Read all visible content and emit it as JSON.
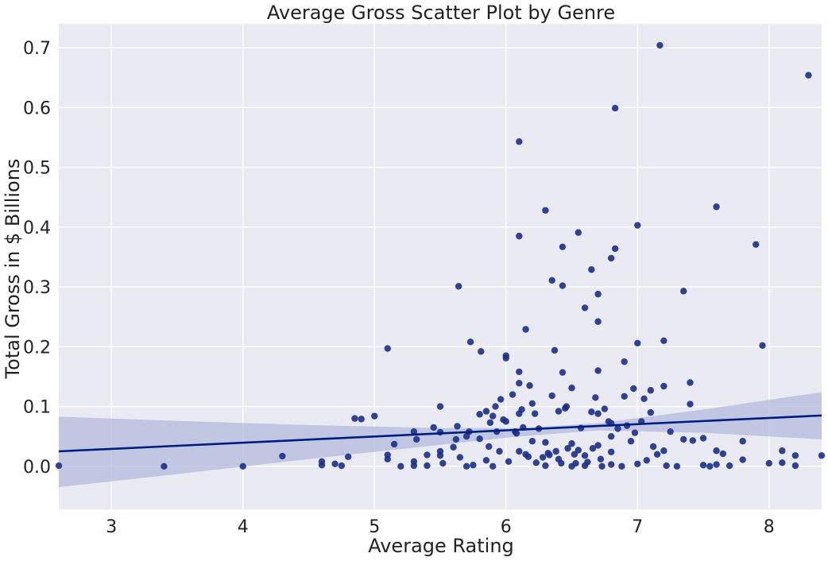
{
  "chart_data": {
    "type": "scatter",
    "title": "Average Gross Scatter Plot by Genre",
    "xlabel": "Average Rating",
    "ylabel": "Total Gross in $ Billions",
    "xlim": [
      2.6,
      8.4
    ],
    "ylim": [
      -0.072,
      0.74
    ],
    "x_ticks": [
      3,
      4,
      5,
      6,
      7,
      8
    ],
    "x_tick_labels": [
      "3",
      "4",
      "5",
      "6",
      "7",
      "8"
    ],
    "y_ticks": [
      0.0,
      0.1,
      0.2,
      0.3,
      0.4,
      0.5,
      0.6,
      0.7
    ],
    "y_tick_labels": [
      "0.0",
      "0.1",
      "0.2",
      "0.3",
      "0.4",
      "0.5",
      "0.6",
      "0.7"
    ],
    "grid": true,
    "legend": "none",
    "colors": {
      "background": "#EAEAF2",
      "grid": "#FFFFFF",
      "point": "#1B2F8A",
      "line": "#001C7F",
      "ci_band": "#B3BBDD"
    },
    "regression": {
      "x_range": [
        2.6,
        8.4
      ],
      "line_y": [
        0.025,
        0.085
      ],
      "ci_upper": [
        0.083,
        0.124
      ],
      "ci_lower": [
        -0.035,
        0.045
      ],
      "ci_x": [
        2.6,
        3.5,
        4.5,
        5.5,
        6.1,
        6.7,
        7.5,
        8.4
      ],
      "ci_upper_values": [
        0.083,
        0.076,
        0.069,
        0.064,
        0.064,
        0.072,
        0.095,
        0.124
      ],
      "ci_lower_values": [
        -0.035,
        -0.013,
        0.012,
        0.036,
        0.05,
        0.06,
        0.056,
        0.045
      ]
    },
    "points": [
      [
        2.6,
        0.001
      ],
      [
        3.4,
        0.0
      ],
      [
        4.0,
        0.0
      ],
      [
        4.3,
        0.017
      ],
      [
        4.6,
        0.002
      ],
      [
        4.6,
        0.008
      ],
      [
        4.7,
        0.004
      ],
      [
        4.75,
        0.001
      ],
      [
        4.8,
        0.016
      ],
      [
        4.85,
        0.08
      ],
      [
        4.9,
        0.079
      ],
      [
        5.0,
        0.084
      ],
      [
        5.1,
        0.197
      ],
      [
        5.1,
        0.019
      ],
      [
        5.1,
        0.012
      ],
      [
        5.15,
        0.037
      ],
      [
        5.2,
        0.0
      ],
      [
        5.3,
        0.001
      ],
      [
        5.3,
        0.008
      ],
      [
        5.3,
        0.058
      ],
      [
        5.32,
        0.045
      ],
      [
        5.4,
        0.001
      ],
      [
        5.4,
        0.019
      ],
      [
        5.45,
        0.065
      ],
      [
        5.5,
        0.1
      ],
      [
        5.5,
        0.057
      ],
      [
        5.5,
        0.025
      ],
      [
        5.5,
        0.018
      ],
      [
        5.52,
        0.005
      ],
      [
        5.6,
        0.032
      ],
      [
        5.62,
        0.045
      ],
      [
        5.63,
        0.067
      ],
      [
        5.64,
        0.301
      ],
      [
        5.65,
        0.015
      ],
      [
        5.7,
        0.0
      ],
      [
        5.7,
        0.05
      ],
      [
        5.72,
        0.058
      ],
      [
        5.73,
        0.208
      ],
      [
        5.75,
        0.002
      ],
      [
        5.8,
        0.087
      ],
      [
        5.8,
        0.046
      ],
      [
        5.81,
        0.192
      ],
      [
        5.85,
        0.092
      ],
      [
        5.85,
        0.01
      ],
      [
        5.87,
        0.033
      ],
      [
        5.88,
        0.073
      ],
      [
        5.9,
        0.0
      ],
      [
        5.9,
        0.084
      ],
      [
        5.92,
        0.1
      ],
      [
        5.93,
        0.058
      ],
      [
        5.95,
        0.025
      ],
      [
        5.96,
        0.112
      ],
      [
        5.98,
        0.078
      ],
      [
        6.0,
        0.185
      ],
      [
        6.0,
        0.181
      ],
      [
        6.0,
        0.075
      ],
      [
        6.02,
        0.008
      ],
      [
        6.05,
        0.12
      ],
      [
        6.07,
        0.058
      ],
      [
        6.08,
        0.055
      ],
      [
        6.1,
        0.543
      ],
      [
        6.1,
        0.385
      ],
      [
        6.1,
        0.158
      ],
      [
        6.1,
        0.139
      ],
      [
        6.1,
        0.088
      ],
      [
        6.1,
        0.025
      ],
      [
        6.12,
        0.095
      ],
      [
        6.13,
        0.065
      ],
      [
        6.15,
        0.229
      ],
      [
        6.15,
        0.02
      ],
      [
        6.17,
        0.016
      ],
      [
        6.18,
        0.135
      ],
      [
        6.2,
        0.105
      ],
      [
        6.2,
        0.042
      ],
      [
        6.22,
        0.088
      ],
      [
        6.23,
        0.006
      ],
      [
        6.25,
        0.063
      ],
      [
        6.28,
        0.015
      ],
      [
        6.3,
        0.428
      ],
      [
        6.3,
        0.04
      ],
      [
        6.3,
        0.001
      ],
      [
        6.32,
        0.022
      ],
      [
        6.33,
        0.019
      ],
      [
        6.35,
        0.311
      ],
      [
        6.35,
        0.118
      ],
      [
        6.37,
        0.194
      ],
      [
        6.38,
        0.025
      ],
      [
        6.4,
        0.092
      ],
      [
        6.4,
        0.012
      ],
      [
        6.42,
        0.005
      ],
      [
        6.43,
        0.367
      ],
      [
        6.43,
        0.302
      ],
      [
        6.43,
        0.157
      ],
      [
        6.45,
        0.097
      ],
      [
        6.46,
        0.1
      ],
      [
        6.47,
        0.03
      ],
      [
        6.5,
        0.131
      ],
      [
        6.5,
        0.038
      ],
      [
        6.5,
        0.0
      ],
      [
        6.52,
        0.02
      ],
      [
        6.53,
        0.005
      ],
      [
        6.55,
        0.391
      ],
      [
        6.55,
        0.027
      ],
      [
        6.57,
        0.064
      ],
      [
        6.6,
        0.265
      ],
      [
        6.6,
        0.018
      ],
      [
        6.6,
        0.001
      ],
      [
        6.62,
        0.007
      ],
      [
        6.65,
        0.329
      ],
      [
        6.65,
        0.091
      ],
      [
        6.66,
        0.03
      ],
      [
        6.68,
        0.115
      ],
      [
        6.7,
        0.288
      ],
      [
        6.7,
        0.242
      ],
      [
        6.7,
        0.16
      ],
      [
        6.7,
        0.088
      ],
      [
        6.7,
        0.035
      ],
      [
        6.72,
        0.012
      ],
      [
        6.73,
        0.0
      ],
      [
        6.75,
        0.096
      ],
      [
        6.78,
        0.075
      ],
      [
        6.8,
        0.348
      ],
      [
        6.8,
        0.072
      ],
      [
        6.8,
        0.05
      ],
      [
        6.8,
        0.024
      ],
      [
        6.8,
        0.003
      ],
      [
        6.83,
        0.599
      ],
      [
        6.83,
        0.364
      ],
      [
        6.85,
        0.063
      ],
      [
        6.88,
        0.0
      ],
      [
        6.9,
        0.175
      ],
      [
        6.9,
        0.117
      ],
      [
        6.92,
        0.068
      ],
      [
        6.95,
        0.042
      ],
      [
        6.97,
        0.13
      ],
      [
        6.98,
        0.056
      ],
      [
        7.0,
        0.403
      ],
      [
        7.0,
        0.206
      ],
      [
        7.0,
        0.004
      ],
      [
        7.03,
        0.075
      ],
      [
        7.05,
        0.113
      ],
      [
        7.07,
        0.01
      ],
      [
        7.1,
        0.127
      ],
      [
        7.1,
        0.09
      ],
      [
        7.12,
        0.033
      ],
      [
        7.15,
        0.02
      ],
      [
        7.17,
        0.704
      ],
      [
        7.2,
        0.21
      ],
      [
        7.2,
        0.134
      ],
      [
        7.2,
        0.026
      ],
      [
        7.22,
        0.001
      ],
      [
        7.25,
        0.058
      ],
      [
        7.3,
        0.0
      ],
      [
        7.35,
        0.293
      ],
      [
        7.35,
        0.045
      ],
      [
        7.4,
        0.14
      ],
      [
        7.4,
        0.104
      ],
      [
        7.42,
        0.043
      ],
      [
        7.5,
        0.047
      ],
      [
        7.5,
        0.002
      ],
      [
        7.55,
        0.0
      ],
      [
        7.6,
        0.434
      ],
      [
        7.6,
        0.026
      ],
      [
        7.6,
        0.003
      ],
      [
        7.65,
        0.021
      ],
      [
        7.7,
        0.001
      ],
      [
        7.8,
        0.042
      ],
      [
        7.8,
        0.011
      ],
      [
        7.9,
        0.371
      ],
      [
        7.95,
        0.202
      ],
      [
        8.0,
        0.005
      ],
      [
        8.1,
        0.026
      ],
      [
        8.1,
        0.006
      ],
      [
        8.2,
        0.018
      ],
      [
        8.2,
        0.001
      ],
      [
        8.3,
        0.654
      ],
      [
        8.4,
        0.018
      ]
    ]
  }
}
